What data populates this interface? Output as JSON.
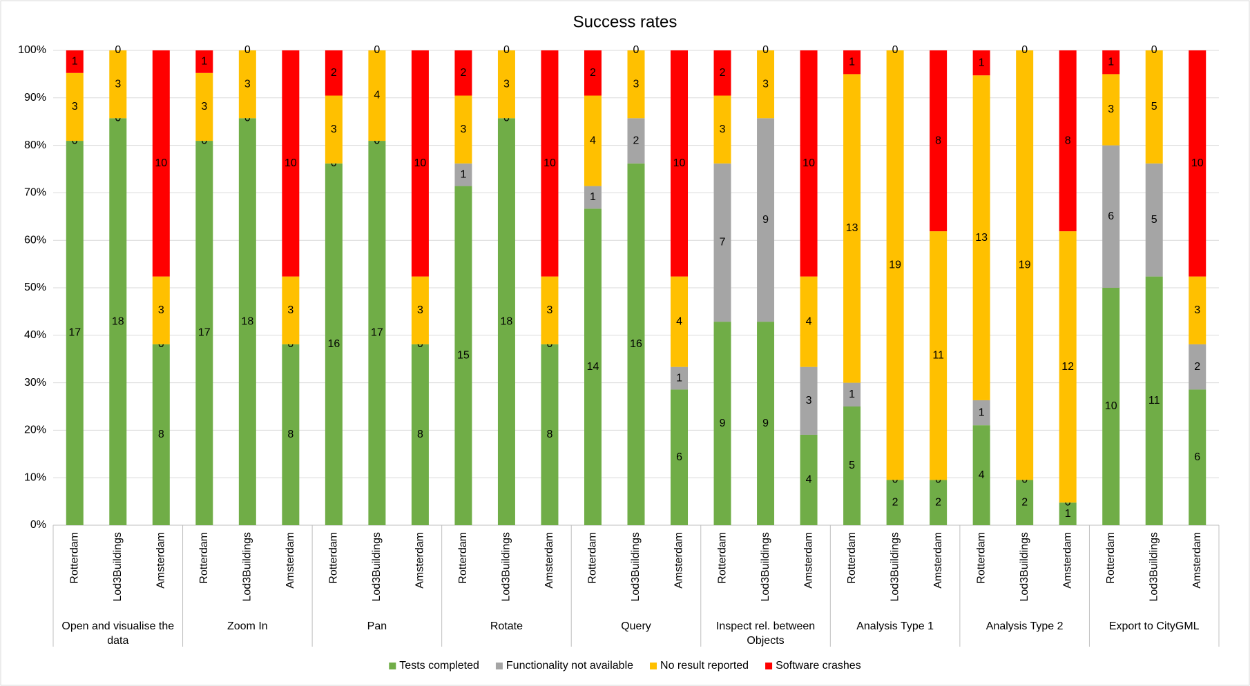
{
  "chart_data": {
    "type": "bar",
    "stacked": "percent",
    "title": "Success rates",
    "categories": [
      "Rotterdam",
      "Lod3Buildings",
      "Amsterdam",
      "Rotterdam",
      "Lod3Buildings",
      "Amsterdam",
      "Rotterdam",
      "Lod3Buildings",
      "Amsterdam",
      "Rotterdam",
      "Lod3Buildings",
      "Amsterdam",
      "Rotterdam",
      "Lod3Buildings",
      "Amsterdam",
      "Rotterdam",
      "Lod3Buildings",
      "Amsterdam",
      "Rotterdam",
      "Lod3Buildings",
      "Amsterdam",
      "Rotterdam",
      "Lod3Buildings",
      "Amsterdam",
      "Rotterdam",
      "Lod3Buildings",
      "Amsterdam"
    ],
    "groups": [
      "Open and visualise the data",
      "Zoom In",
      "Pan",
      "Rotate",
      "Query",
      "Inspect rel. between Objects",
      "Analysis Type 1",
      "Analysis Type 2",
      "Export to CityGML"
    ],
    "series": [
      {
        "name": "Tests completed",
        "color": "#70ad47",
        "values": [
          17,
          18,
          8,
          17,
          18,
          8,
          16,
          17,
          8,
          15,
          18,
          8,
          14,
          16,
          6,
          9,
          9,
          4,
          5,
          2,
          2,
          4,
          2,
          1,
          10,
          11,
          6
        ]
      },
      {
        "name": "Functionality not available",
        "color": "#a5a5a5",
        "values": [
          0,
          0,
          0,
          0,
          0,
          0,
          0,
          0,
          0,
          1,
          0,
          0,
          1,
          2,
          1,
          7,
          9,
          3,
          1,
          0,
          0,
          1,
          0,
          0,
          6,
          5,
          2
        ]
      },
      {
        "name": "No result reported",
        "color": "#ffc000",
        "values": [
          3,
          3,
          3,
          3,
          3,
          3,
          3,
          4,
          3,
          3,
          3,
          3,
          4,
          3,
          4,
          3,
          3,
          4,
          13,
          19,
          11,
          13,
          19,
          12,
          3,
          5,
          3
        ]
      },
      {
        "name": "Software crashes",
        "color": "#ff0000",
        "values": [
          1,
          0,
          10,
          1,
          0,
          10,
          2,
          0,
          10,
          2,
          0,
          10,
          2,
          0,
          10,
          2,
          0,
          10,
          1,
          0,
          8,
          1,
          0,
          8,
          1,
          0,
          10
        ]
      }
    ],
    "ylim": [
      0,
      100
    ],
    "yticks": [
      {
        "value": 0,
        "label": "0%"
      },
      {
        "value": 10,
        "label": "10%"
      },
      {
        "value": 20,
        "label": "20%"
      },
      {
        "value": 30,
        "label": "30%"
      },
      {
        "value": 40,
        "label": "40%"
      },
      {
        "value": 50,
        "label": "50%"
      },
      {
        "value": 60,
        "label": "60%"
      },
      {
        "value": 70,
        "label": "70%"
      },
      {
        "value": 80,
        "label": "80%"
      },
      {
        "value": 90,
        "label": "90%"
      },
      {
        "value": 100,
        "label": "100%"
      }
    ],
    "grid": true,
    "legend": "bottom"
  }
}
